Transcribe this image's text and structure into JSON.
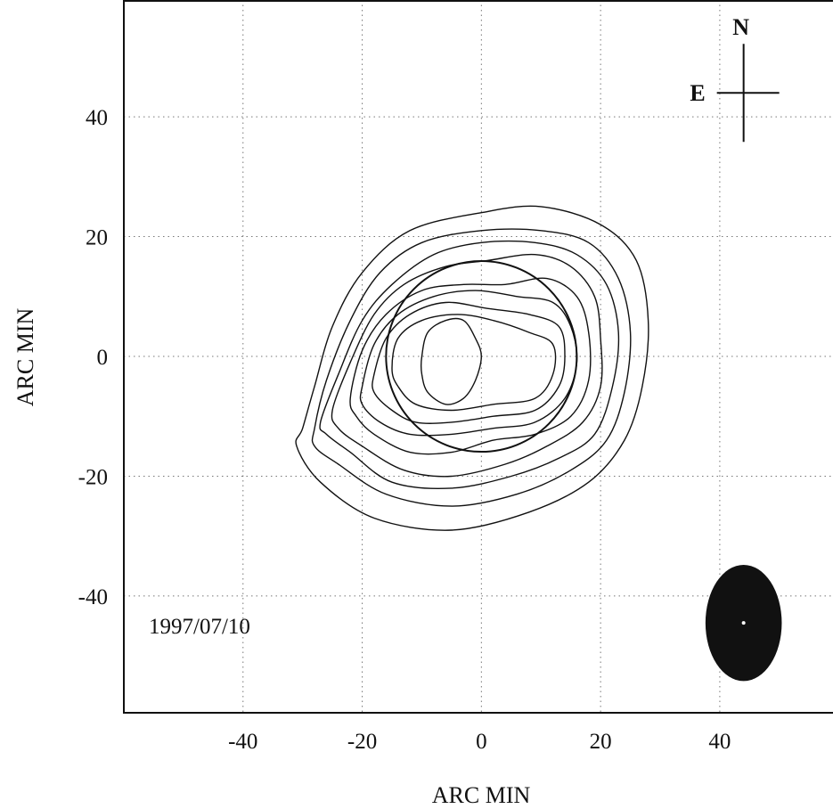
{
  "chart_data": {
    "type": "contour",
    "xlabel": "ARC MIN",
    "ylabel": "ARC MIN",
    "xlim": [
      -60,
      59
    ],
    "ylim": [
      -59.5,
      59.5
    ],
    "xticks": [
      -40,
      -20,
      0,
      20,
      40
    ],
    "yticks": [
      40,
      20,
      0,
      -20,
      -40
    ],
    "grid": true,
    "grid_style": "dotted",
    "annotation": "1997/07/10",
    "compass": {
      "north": "N",
      "east": "E",
      "center": [
        44,
        44
      ]
    },
    "beam": {
      "center": [
        44,
        -44.5
      ],
      "semi_major_y": 9.7,
      "semi_minor_x": 6.4
    },
    "solar_disk": {
      "center": [
        0,
        0
      ],
      "radius": 16
    },
    "contours": [
      {
        "level": 1,
        "points": [
          [
            -30,
            -12
          ],
          [
            -28,
            -5
          ],
          [
            -25,
            5
          ],
          [
            -20,
            14
          ],
          [
            -12,
            21
          ],
          [
            0,
            24
          ],
          [
            10,
            25
          ],
          [
            20,
            22
          ],
          [
            26,
            16
          ],
          [
            28,
            6
          ],
          [
            27,
            -5
          ],
          [
            24,
            -14
          ],
          [
            18,
            -21
          ],
          [
            8,
            -26
          ],
          [
            -5,
            -29
          ],
          [
            -18,
            -27
          ],
          [
            -27,
            -21
          ],
          [
            -31,
            -15
          ]
        ]
      },
      {
        "level": 2,
        "points": [
          [
            -28,
            -12
          ],
          [
            -26,
            -4
          ],
          [
            -22,
            6
          ],
          [
            -17,
            14
          ],
          [
            -10,
            19
          ],
          [
            0,
            21
          ],
          [
            10,
            21
          ],
          [
            18,
            19
          ],
          [
            23,
            13
          ],
          [
            25,
            4
          ],
          [
            24,
            -6
          ],
          [
            21,
            -14
          ],
          [
            15,
            -19
          ],
          [
            6,
            -23
          ],
          [
            -5,
            -25
          ],
          [
            -16,
            -23
          ],
          [
            -24,
            -18
          ],
          [
            -28,
            -15
          ]
        ]
      },
      {
        "level": 3,
        "points": [
          [
            -27,
            -11
          ],
          [
            -24,
            -3
          ],
          [
            -20,
            6
          ],
          [
            -15,
            12
          ],
          [
            -8,
            17
          ],
          [
            0,
            19
          ],
          [
            9,
            19
          ],
          [
            16,
            17
          ],
          [
            21,
            12
          ],
          [
            23,
            4
          ],
          [
            22,
            -5
          ],
          [
            19,
            -13
          ],
          [
            13,
            -17
          ],
          [
            5,
            -20
          ],
          [
            -5,
            -22
          ],
          [
            -15,
            -21
          ],
          [
            -22,
            -16
          ],
          [
            -26,
            -13
          ]
        ]
      },
      {
        "level": 4,
        "points": [
          [
            -25,
            -9
          ],
          [
            -22,
            -1
          ],
          [
            -18,
            7
          ],
          [
            -13,
            12
          ],
          [
            -6,
            15
          ],
          [
            1,
            16
          ],
          [
            9,
            17
          ],
          [
            15,
            15
          ],
          [
            19,
            10
          ],
          [
            20,
            3
          ],
          [
            20,
            -5
          ],
          [
            17,
            -11
          ],
          [
            11,
            -15
          ],
          [
            4,
            -18
          ],
          [
            -5,
            -20
          ],
          [
            -13,
            -19
          ],
          [
            -20,
            -15
          ],
          [
            -24,
            -12
          ]
        ]
      },
      {
        "level": 5,
        "points": [
          [
            -22,
            -7
          ],
          [
            -20,
            1
          ],
          [
            -16,
            7
          ],
          [
            -10,
            11
          ],
          [
            -3,
            12
          ],
          [
            4,
            12
          ],
          [
            11,
            13
          ],
          [
            16,
            10
          ],
          [
            18,
            4
          ],
          [
            18,
            -4
          ],
          [
            15,
            -10
          ],
          [
            9,
            -13
          ],
          [
            2,
            -14
          ],
          [
            -5,
            -16
          ],
          [
            -12,
            -16
          ],
          [
            -18,
            -13
          ],
          [
            -21,
            -10
          ]
        ]
      },
      {
        "level": 6,
        "points": [
          [
            -20,
            -5
          ],
          [
            -18,
            2
          ],
          [
            -14,
            7
          ],
          [
            -8,
            10
          ],
          [
            -1,
            11
          ],
          [
            6,
            10
          ],
          [
            12,
            9
          ],
          [
            15,
            5
          ],
          [
            16,
            -1
          ],
          [
            14,
            -7
          ],
          [
            9,
            -11
          ],
          [
            2,
            -12
          ],
          [
            -5,
            -13
          ],
          [
            -12,
            -13
          ],
          [
            -17,
            -11
          ],
          [
            -20,
            -8
          ]
        ]
      },
      {
        "level": 7,
        "points": [
          [
            -18,
            -3
          ],
          [
            -16,
            3
          ],
          [
            -12,
            7
          ],
          [
            -6,
            9
          ],
          [
            1,
            8
          ],
          [
            8,
            7
          ],
          [
            13,
            5
          ],
          [
            14,
            0
          ],
          [
            13,
            -5
          ],
          [
            9,
            -9
          ],
          [
            2,
            -10
          ],
          [
            -5,
            -11
          ],
          [
            -11,
            -11
          ],
          [
            -15,
            -9
          ],
          [
            -18,
            -6
          ]
        ]
      },
      {
        "level": 8,
        "points": [
          [
            -15,
            -2
          ],
          [
            -14,
            3
          ],
          [
            -10,
            6
          ],
          [
            -4,
            7
          ],
          [
            2,
            6
          ],
          [
            8,
            4
          ],
          [
            12,
            2
          ],
          [
            12,
            -3
          ],
          [
            9,
            -7
          ],
          [
            2,
            -8
          ],
          [
            -5,
            -9
          ],
          [
            -11,
            -8
          ],
          [
            -14,
            -5
          ]
        ]
      },
      {
        "level": 9,
        "points": [
          [
            -10,
            0
          ],
          [
            -9,
            4
          ],
          [
            -6,
            6
          ],
          [
            -3,
            6
          ],
          [
            -1,
            3
          ],
          [
            0,
            0
          ],
          [
            -1,
            -4
          ],
          [
            -3,
            -7
          ],
          [
            -6,
            -8
          ],
          [
            -9,
            -6
          ],
          [
            -10,
            -3
          ]
        ]
      }
    ]
  }
}
